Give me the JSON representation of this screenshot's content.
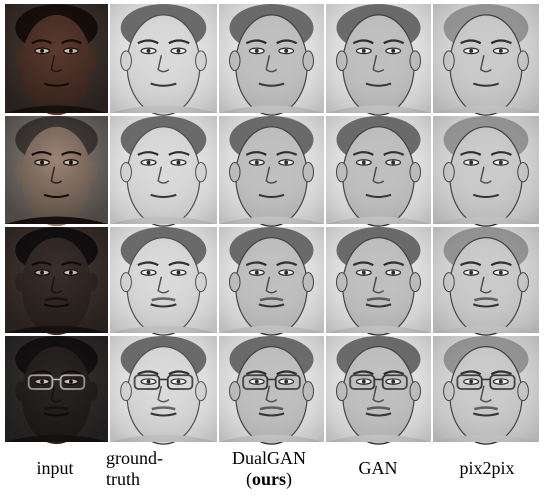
{
  "columns": [
    {
      "id": "input",
      "lines": [
        "input"
      ]
    },
    {
      "id": "ground-truth",
      "lines": [
        "ground-",
        "truth"
      ]
    },
    {
      "id": "dualgan",
      "lines": [
        "DualGAN",
        "(",
        "ours",
        ")"
      ]
    },
    {
      "id": "gan",
      "lines": [
        "GAN"
      ]
    },
    {
      "id": "pix2pix",
      "lines": [
        "pix2pix"
      ]
    }
  ],
  "labels": {
    "input": "input",
    "gt_line1": "ground-",
    "gt_line2": "truth",
    "dual_line1": "DualGAN",
    "dual_open": "(",
    "dual_bold": "ours",
    "dual_close": ")",
    "gan": "GAN",
    "pix2pix": "pix2pix"
  },
  "rows": 4,
  "subjects": [
    {
      "tone": "#5b3a2e",
      "hair": "#1b120e"
    },
    {
      "tone": "#9b8474",
      "hair": "#4a4440"
    },
    {
      "tone": "#3b2f2b",
      "hair": "#151212"
    },
    {
      "tone": "#2b2626",
      "hair": "#161414",
      "glasses": true
    }
  ]
}
